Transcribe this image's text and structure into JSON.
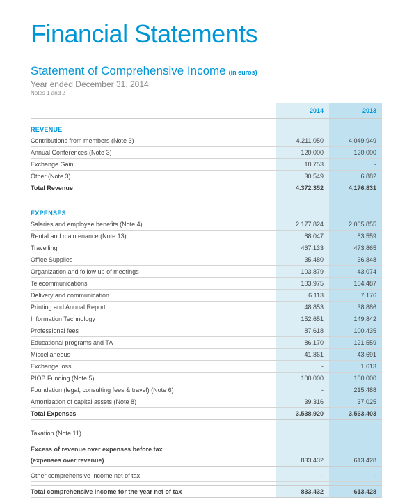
{
  "colors": {
    "brand": "#0096d6",
    "shade_2014": "#dbeef6",
    "shade_2013": "#c0e1f0",
    "text": "#333333",
    "muted": "#888888",
    "rule": "#cccccc"
  },
  "title": "Financial Statements",
  "subtitle": "Statement of Comprehensive Income",
  "subtitle_unit": "(in euros)",
  "year_line": "Year ended December 31, 2014",
  "notes_line": "Notes 1 and 2",
  "years": [
    "2014",
    "2013"
  ],
  "sections": [
    {
      "heading": "REVENUE",
      "rows": [
        {
          "label": "Contributions from members (Note 3)",
          "vals": [
            "4.211.050",
            "4.049.949"
          ]
        },
        {
          "label": "Annual Conferences  (Note 3)",
          "vals": [
            "120.000",
            "120.000"
          ]
        },
        {
          "label": "Exchange Gain",
          "vals": [
            "10.753",
            "-"
          ]
        },
        {
          "label": "Other  (Note 3)",
          "vals": [
            "30.549",
            "6.882"
          ]
        }
      ],
      "total": {
        "label": "Total Revenue",
        "vals": [
          "4.372.352",
          "4.176.831"
        ]
      }
    },
    {
      "heading": "EXPENSES",
      "rows": [
        {
          "label": "Salaries and employee benefits (Note 4)",
          "vals": [
            "2.177.824",
            "2.005.855"
          ]
        },
        {
          "label": "Rental and maintenance (Note 13)",
          "vals": [
            "88.047",
            "83.559"
          ]
        },
        {
          "label": "Travelling",
          "vals": [
            "467.133",
            "473.865"
          ]
        },
        {
          "label": "Office Supplies",
          "vals": [
            "35.480",
            "36.848"
          ]
        },
        {
          "label": "Organization and follow up of meetings",
          "vals": [
            "103.879",
            "43.074"
          ]
        },
        {
          "label": "Telecommunications",
          "vals": [
            "103.975",
            "104.487"
          ]
        },
        {
          "label": "Delivery and communication",
          "vals": [
            "6.113",
            "7.176"
          ]
        },
        {
          "label": "Printing and Annual Report",
          "vals": [
            "48.853",
            "38.886"
          ]
        },
        {
          "label": "Information Technology",
          "vals": [
            "152.651",
            "149.842"
          ]
        },
        {
          "label": "Professional fees",
          "vals": [
            "87.618",
            "100.435"
          ]
        },
        {
          "label": "Educational programs and TA",
          "vals": [
            "86.170",
            "121.559"
          ]
        },
        {
          "label": "Miscellaneous",
          "vals": [
            "41.861",
            "43.691"
          ]
        },
        {
          "label": "Exchange loss",
          "vals": [
            "-",
            "1.613"
          ]
        },
        {
          "label": "PIOB Funding (Note 5)",
          "vals": [
            "100.000",
            "100.000"
          ]
        },
        {
          "label": "Foundation (legal, consulting fees & travel) (Note 6)",
          "vals": [
            "-",
            "215.488"
          ]
        },
        {
          "label": "Amortization of capital assets (Note 8)",
          "vals": [
            "39.316",
            "37.025"
          ]
        }
      ],
      "total": {
        "label": "Total Expenses",
        "vals": [
          "3.538.920",
          "3.563.403"
        ]
      }
    }
  ],
  "summary": {
    "taxation_label": "Taxation (Note 11)",
    "excess_label": "Excess of revenue over expenses before tax",
    "excess_paren": "(expenses over revenue)",
    "excess_vals": [
      "833.432",
      "613.428"
    ],
    "other_comp_label": "Other comprehensive income net of tax",
    "other_comp_vals": [
      "-",
      "-"
    ],
    "total_comp_label": "Total comprehensive income for the year net of tax",
    "total_comp_vals": [
      "833.432",
      "613.428"
    ]
  }
}
